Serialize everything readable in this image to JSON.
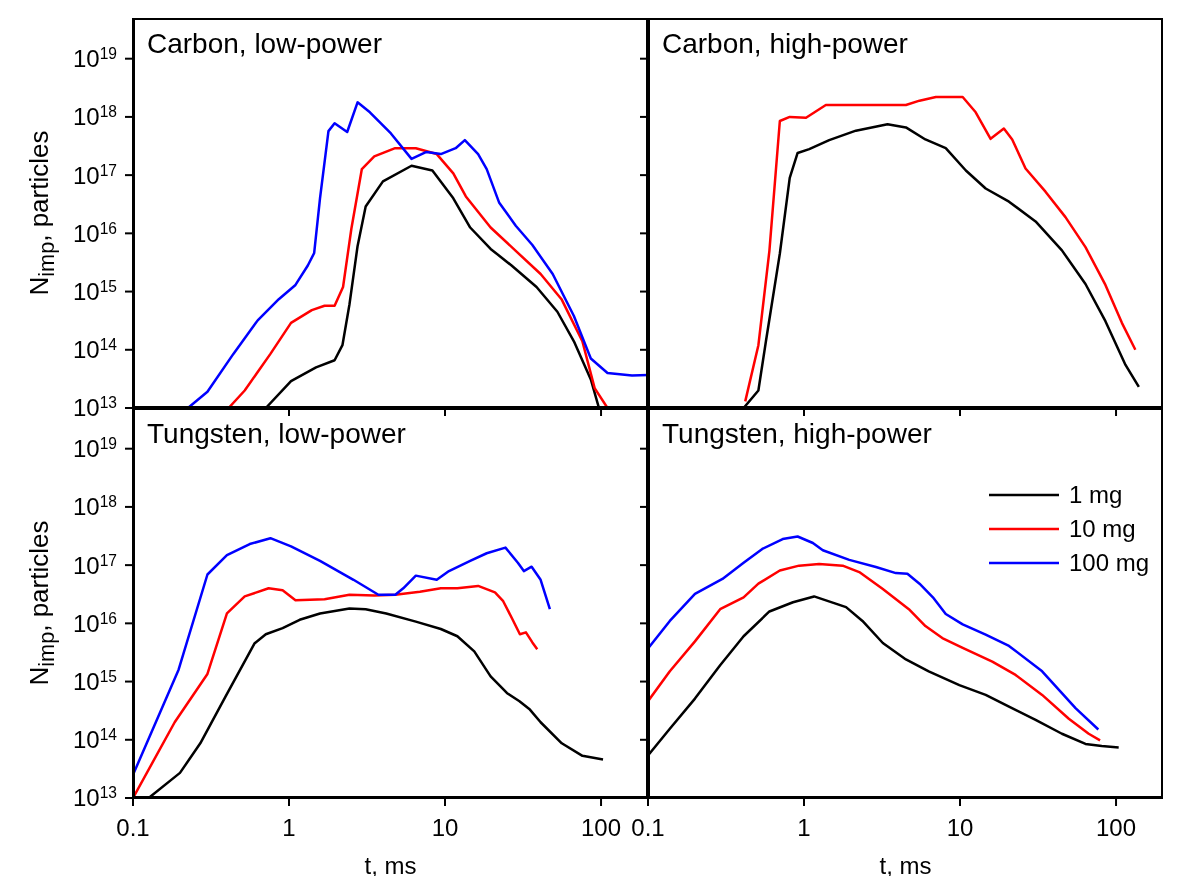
{
  "chart_data": [
    {
      "type": "line",
      "title": "Carbon, low-power",
      "ylabel": "N$_{imp}$, particles",
      "log": "xy",
      "xlim": [
        0.1,
        200
      ],
      "ylim": [
        10000000000000.0,
        5e+19
      ],
      "xticks": [
        {
          "value": 0.1,
          "label": null
        },
        {
          "value": 1,
          "label": null
        },
        {
          "value": 10,
          "label": null
        },
        {
          "value": 100,
          "label": null
        }
      ],
      "yticks": [
        {
          "value": 10000000000000.0,
          "label": "10$^{13}$"
        },
        {
          "value": 100000000000000.0,
          "label": "10$^{14}$"
        },
        {
          "value": 1000000000000000.0,
          "label": "10$^{15}$"
        },
        {
          "value": 1e+16,
          "label": "10$^{16}$"
        },
        {
          "value": 1e+17,
          "label": "10$^{17}$"
        },
        {
          "value": 1e+18,
          "label": "10$^{18}$"
        },
        {
          "value": 1e+19,
          "label": "10$^{19}$"
        }
      ],
      "tick_labels": "y",
      "series": [
        {
          "color": "#000000",
          "x": [
            0.71,
            1.03,
            1.49,
            1.96,
            2.2,
            2.44,
            2.75,
            3.1,
            4,
            6.1,
            8.3,
            11.3,
            14.5,
            19.6,
            26.7,
            38.6,
            52.5,
            67,
            86,
            97
          ],
          "values": [
            10000000000000.0,
            29000000000000.0,
            50000000000000.0,
            66000000000000.0,
            120000000000000.0,
            600000000000000.0,
            6000000000000000.0,
            2.9e+16,
            7.8e+16,
            1.45e+17,
            1.2e+17,
            4e+16,
            1.26e+16,
            5400000000000000.0,
            2800000000000000.0,
            1200000000000000.0,
            450000000000000.0,
            140000000000000.0,
            31000000000000.0,
            10000000000000.0
          ]
        },
        {
          "color": "#ff0000",
          "x": [
            0.41,
            0.52,
            0.76,
            1.03,
            1.4,
            1.69,
            1.96,
            2.22,
            2.51,
            2.93,
            3.52,
            4.79,
            6.5,
            8.85,
            11.3,
            13.6,
            19.6,
            28.4,
            41,
            55.8,
            75.9,
            91,
            110
          ],
          "values": [
            10000000000000.0,
            20000000000000.0,
            85000000000000.0,
            290000000000000.0,
            480000000000000.0,
            570000000000000.0,
            570000000000000.0,
            1200000000000000.0,
            1.2e+16,
            1.27e+17,
            2.1e+17,
            2.9e+17,
            2.9e+17,
            2.3e+17,
            1.07e+17,
            4.3e+16,
            1.26e+16,
            5000000000000000.0,
            2000000000000000.0,
            740000000000000.0,
            140000000000000.0,
            22000000000000.0,
            10000000000000.0
          ]
        },
        {
          "color": "#0000ff",
          "x": [
            0.225,
            0.3,
            0.44,
            0.63,
            0.86,
            1.1,
            1.32,
            1.45,
            1.58,
            1.79,
            1.96,
            2.36,
            2.75,
            3.3,
            4.5,
            6.1,
            7.6,
            9.4,
            11.7,
            13.4,
            16.3,
            18.5,
            22.2,
            28.4,
            36.3,
            49,
            67,
            86,
            110,
            158,
            200
          ],
          "values": [
            10000000000000.0,
            19000000000000.0,
            85000000000000.0,
            320000000000000.0,
            740000000000000.0,
            1300000000000000.0,
            2800000000000000.0,
            4600000000000000.0,
            4e+16,
            5.7e+17,
            7.8e+17,
            5.5e+17,
            1.78e+18,
            1.2e+18,
            5.2e+17,
            1.9e+17,
            2.5e+17,
            2.3e+17,
            2.9e+17,
            4e+17,
            2.3e+17,
            1.27e+17,
            3.4e+16,
            1.35e+16,
            6300000000000000.0,
            2000000000000000.0,
            380000000000000.0,
            71000000000000.0,
            40000000000000.0,
            36000000000000.0,
            37000000000000.0
          ]
        }
      ]
    },
    {
      "type": "line",
      "title": "Carbon, high-power",
      "log": "xy",
      "xlim": [
        0.1,
        200
      ],
      "ylim": [
        10000000000000.0,
        5e+19
      ],
      "xticks": [
        {
          "value": 0.1,
          "label": null
        },
        {
          "value": 1,
          "label": null
        },
        {
          "value": 10,
          "label": null
        },
        {
          "value": 100,
          "label": null
        }
      ],
      "yticks": [
        {
          "value": 10000000000000.0,
          "label": null
        },
        {
          "value": 100000000000000.0,
          "label": null
        },
        {
          "value": 1000000000000000.0,
          "label": null
        },
        {
          "value": 1e+16,
          "label": null
        },
        {
          "value": 1e+17,
          "label": null
        },
        {
          "value": 1e+18,
          "label": null
        },
        {
          "value": 1e+19,
          "label": null
        }
      ],
      "tick_labels": false,
      "series": [
        {
          "color": "#000000",
          "x": [
            0.41,
            0.51,
            0.57,
            0.7,
            0.81,
            0.91,
            1.08,
            1.45,
            2.15,
            3.43,
            4.5,
            6,
            8.1,
            10.9,
            14.6,
            20.6,
            30.5,
            45,
            63.7,
            85.5,
            115,
            140
          ],
          "values": [
            10000000000000.0,
            20000000000000.0,
            140000000000000.0,
            4500000000000000.0,
            9e+16,
            2.4e+17,
            2.8e+17,
            4e+17,
            5.8e+17,
            7.5e+17,
            6.6e+17,
            4.1e+17,
            2.9e+17,
            1.2e+17,
            5.9e+16,
            3.5e+16,
            1.6e+16,
            5100000000000000.0,
            1350000000000000.0,
            310000000000000.0,
            55000000000000.0,
            23000000000000.0
          ]
        },
        {
          "color": "#ff0000",
          "x": [
            0.42,
            0.51,
            0.6,
            0.7,
            0.81,
            1.03,
            1.38,
            1.86,
            4.5,
            5.5,
            7,
            10.4,
            12.6,
            15.7,
            19.1,
            21.6,
            26.3,
            35.3,
            47.4,
            63.7,
            85.5,
            109,
            133
          ],
          "values": [
            13000000000000.0,
            120000000000000.0,
            5000000000000000.0,
            8.5e+17,
            1e+18,
            9.7e+17,
            1.6e+18,
            1.6e+18,
            1.6e+18,
            1.9e+18,
            2.2e+18,
            2.2e+18,
            1.2e+18,
            4.2e+17,
            6.3e+17,
            4.1e+17,
            1.3e+17,
            5.2e+16,
            1.9e+16,
            5800000000000000.0,
            1300000000000000.0,
            290000000000000.0,
            100000000000000.0
          ]
        }
      ]
    },
    {
      "type": "line",
      "title": "Tungsten, low-power",
      "xlabel": "t, ms",
      "ylabel": "N$_{imp}$, particles",
      "log": "xy",
      "xlim": [
        0.1,
        200
      ],
      "ylim": [
        10000000000000.0,
        5e+19
      ],
      "xticks": [
        0.1,
        1,
        10,
        100
      ],
      "yticks": [
        {
          "value": 10000000000000.0,
          "label": "10$^{13}$"
        },
        {
          "value": 100000000000000.0,
          "label": "10$^{14}$"
        },
        {
          "value": 1000000000000000.0,
          "label": "10$^{15}$"
        },
        {
          "value": 1e+16,
          "label": "10$^{16}$"
        },
        {
          "value": 1e+17,
          "label": "10$^{17}$"
        },
        {
          "value": 1e+18,
          "label": "10$^{18}$"
        },
        {
          "value": 1e+19,
          "label": "10$^{19}$"
        }
      ],
      "series": [
        {
          "color": "#000000",
          "x": [
            0.126,
            0.2,
            0.27,
            0.39,
            0.6,
            0.71,
            0.91,
            1.17,
            1.58,
            2.44,
            3.1,
            4.2,
            6.5,
            9.4,
            12,
            15.4,
            19.6,
            25,
            30,
            35,
            41,
            56,
            76,
            103
          ],
          "values": [
            10000000000000.0,
            27000000000000.0,
            87000000000000.0,
            540000000000000.0,
            4500000000000000.0,
            6500000000000000.0,
            8300000000000000.0,
            1.15e+16,
            1.48e+16,
            1.8e+16,
            1.75e+16,
            1.48e+16,
            1.07e+16,
            8000000000000000.0,
            6000000000000000.0,
            3300000000000000.0,
            1230000000000000.0,
            630000000000000.0,
            460000000000000.0,
            330000000000000.0,
            200000000000000.0,
            87000000000000.0,
            53000000000000.0,
            46000000000000.0
          ]
        },
        {
          "color": "#ff0000",
          "x": [
            0.1,
            0.185,
            0.3,
            0.4,
            0.52,
            0.74,
            0.91,
            1.1,
            1.69,
            2.44,
            3.52,
            4.8,
            6.9,
            9.4,
            12,
            16.3,
            20.9,
            23.6,
            26.7,
            30.2,
            33,
            36.3,
            39
          ],
          "values": [
            10000000000000.0,
            200000000000000.0,
            1350000000000000.0,
            1.48e+16,
            2.9e+16,
            4e+16,
            3.7e+16,
            2.5e+16,
            2.6e+16,
            3.1e+16,
            3e+16,
            3.1e+16,
            3.5e+16,
            4e+16,
            4e+16,
            4.4e+16,
            3.4e+16,
            2.4e+16,
            1.26e+16,
            6500000000000000.0,
            7000000000000000.0,
            4700000000000000.0,
            3600000000000000.0
          ]
        },
        {
          "color": "#0000ff",
          "x": [
            0.1,
            0.196,
            0.3,
            0.4,
            0.56,
            0.76,
            1.03,
            1.58,
            2.59,
            3.74,
            4.8,
            5.4,
            6.5,
            8.85,
            10.6,
            14.5,
            18.5,
            24.4,
            29.3,
            32,
            35.9,
            41,
            47
          ],
          "values": [
            25000000000000.0,
            1600000000000000.0,
            6.9e+16,
            1.48e+17,
            2.3e+17,
            2.9e+17,
            2.1e+17,
            1.18e+17,
            5.6e+16,
            3.1e+16,
            3.1e+16,
            4e+16,
            6.6e+16,
            5.6e+16,
            7.9e+16,
            1.18e+17,
            1.6e+17,
            2e+17,
            1.1e+17,
            7.9e+16,
            9.4e+16,
            5.6e+16,
            1.75e+16
          ]
        }
      ]
    },
    {
      "type": "line",
      "title": "Tungsten, high-power",
      "xlabel": "t, ms",
      "log": "xy",
      "xlim": [
        0.1,
        200
      ],
      "ylim": [
        10000000000000.0,
        5e+19
      ],
      "xticks": [
        0.1,
        1,
        10,
        100
      ],
      "yticks": [
        {
          "value": 10000000000000.0,
          "label": null
        },
        {
          "value": 100000000000000.0,
          "label": null
        },
        {
          "value": 1000000000000000.0,
          "label": null
        },
        {
          "value": 1e+16,
          "label": null
        },
        {
          "value": 1e+17,
          "label": null
        },
        {
          "value": 1e+18,
          "label": null
        },
        {
          "value": 1e+19,
          "label": null
        }
      ],
      "tick_labels": "x",
      "legend": "top right",
      "series": [
        {
          "name": "1 mg",
          "color": "#000000",
          "x": [
            0.1,
            0.138,
            0.2,
            0.29,
            0.41,
            0.6,
            0.85,
            1.16,
            1.86,
            2.37,
            3.2,
            4.5,
            6.3,
            9.9,
            14.6,
            20.6,
            30.5,
            45,
            63.7,
            81,
            104
          ],
          "values": [
            54000000000000.0,
            155000000000000.0,
            510000000000000.0,
            1900000000000000.0,
            6000000000000000.0,
            1.6e+16,
            2.3e+16,
            2.9e+16,
            1.9e+16,
            1.1e+16,
            4600000000000000.0,
            2400000000000000.0,
            1500000000000000.0,
            870000000000000.0,
            590000000000000.0,
            370000000000000.0,
            220000000000000.0,
            127000000000000.0,
            85000000000000.0,
            78000000000000.0,
            74000000000000.0
          ]
        },
        {
          "name": "10 mg",
          "color": "#ff0000",
          "x": [
            0.1,
            0.138,
            0.2,
            0.29,
            0.41,
            0.51,
            0.7,
            0.93,
            1.25,
            1.77,
            2.26,
            3.2,
            4.7,
            6,
            7.7,
            10.4,
            16.1,
            22.7,
            33.6,
            49.8,
            66.8,
            79
          ],
          "values": [
            460000000000000.0,
            1500000000000000.0,
            4900000000000000.0,
            1.75e+16,
            2.8e+16,
            4.8e+16,
            8.1e+16,
            9.8e+16,
            1.05e+17,
            9.8e+16,
            7.6e+16,
            3.9e+16,
            1.75e+16,
            9000000000000000.0,
            5600000000000000.0,
            3800000000000000.0,
            2200000000000000.0,
            1300000000000000.0,
            590000000000000.0,
            230000000000000.0,
            127000000000000.0,
            98000000000000.0
          ]
        },
        {
          "name": "100 mg",
          "color": "#0000ff",
          "x": [
            0.1,
            0.138,
            0.2,
            0.3,
            0.41,
            0.54,
            0.73,
            0.91,
            1.14,
            1.32,
            1.95,
            2.89,
            3.88,
            4.6,
            5.5,
            6.7,
            8.1,
            10.4,
            14.6,
            20.6,
            33.6,
            55,
            77
          ],
          "values": [
            3700000000000000.0,
            1.1e+16,
            3.2e+16,
            5.8e+16,
            1.1e+17,
            1.9e+17,
            2.8e+17,
            3.1e+17,
            2.4e+17,
            1.8e+17,
            1.23e+17,
            9.3e+16,
            7.3e+16,
            7.1e+16,
            4.8e+16,
            2.8e+16,
            1.45e+16,
            9600000000000000.0,
            6400000000000000.0,
            4100000000000000.0,
            1500000000000000.0,
            350000000000000.0,
            150000000000000.0
          ]
        }
      ]
    }
  ]
}
